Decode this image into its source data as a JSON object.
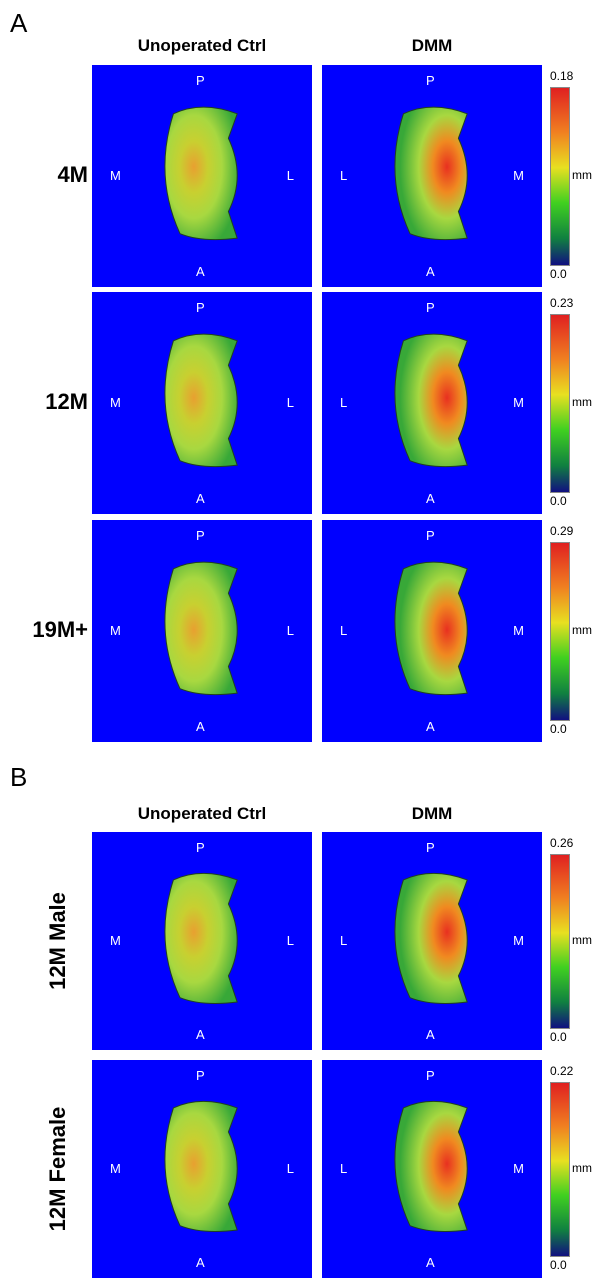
{
  "sections": [
    {
      "label": "A",
      "columns": [
        "Unoperated Ctrl",
        "DMM"
      ],
      "rows": [
        {
          "label": "4M",
          "panels": [
            {
              "top": "P",
              "bottom": "A",
              "left": "M",
              "right": "L"
            },
            {
              "top": "P",
              "bottom": "A",
              "left": "L",
              "right": "M"
            }
          ],
          "colorbar": {
            "max": "0.18",
            "unit": "mm",
            "min": "0.0"
          }
        },
        {
          "label": "12M",
          "panels": [
            {
              "top": "P",
              "bottom": "A",
              "left": "M",
              "right": "L"
            },
            {
              "top": "P",
              "bottom": "A",
              "left": "L",
              "right": "M"
            }
          ],
          "colorbar": {
            "max": "0.23",
            "unit": "mm",
            "min": "0.0"
          }
        },
        {
          "label": "19M+",
          "panels": [
            {
              "top": "P",
              "bottom": "A",
              "left": "M",
              "right": "L"
            },
            {
              "top": "P",
              "bottom": "A",
              "left": "L",
              "right": "M"
            }
          ],
          "colorbar": {
            "max": "0.29",
            "unit": "mm",
            "min": "0.0"
          }
        }
      ]
    },
    {
      "label": "B",
      "columns": [
        "Unoperated Ctrl",
        "DMM"
      ],
      "rows": [
        {
          "label": "12M Male",
          "panels": [
            {
              "top": "P",
              "bottom": "A",
              "left": "M",
              "right": "L"
            },
            {
              "top": "P",
              "bottom": "A",
              "left": "L",
              "right": "M"
            }
          ],
          "colorbar": {
            "max": "0.26",
            "unit": "mm",
            "min": "0.0"
          }
        },
        {
          "label": "12M Female",
          "panels": [
            {
              "top": "P",
              "bottom": "A",
              "left": "M",
              "right": "L"
            },
            {
              "top": "P",
              "bottom": "A",
              "left": "L",
              "right": "M"
            }
          ],
          "colorbar": {
            "max": "0.22",
            "unit": "mm",
            "min": "0.0"
          }
        }
      ]
    }
  ]
}
